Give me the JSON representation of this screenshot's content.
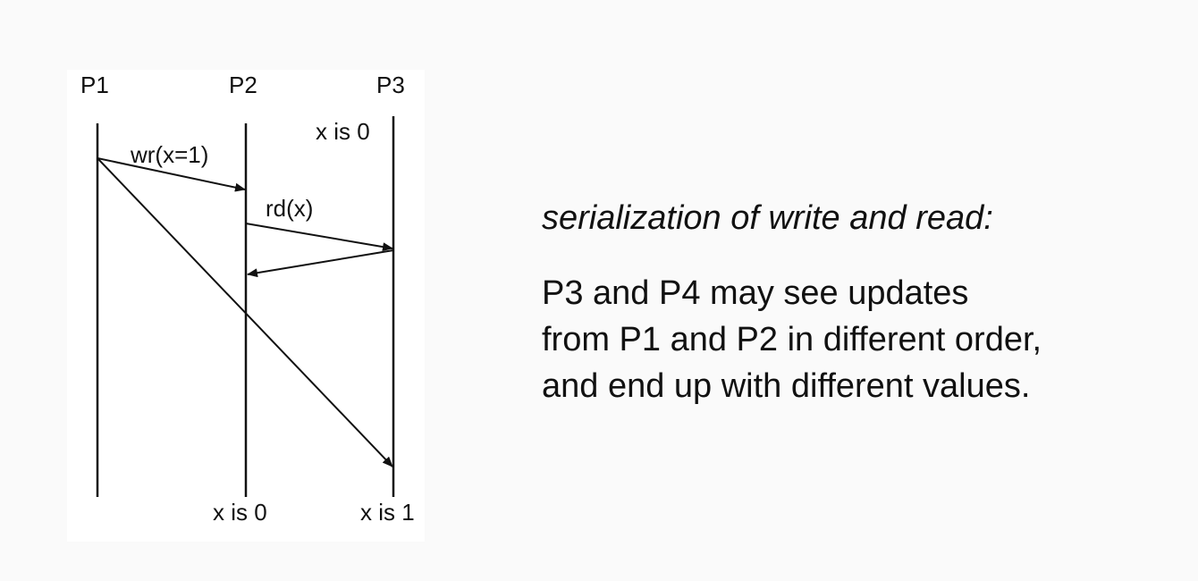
{
  "diagram": {
    "processes": [
      "P1",
      "P2",
      "P3"
    ],
    "labels": {
      "write_op": "wr(x=1)",
      "read_op": "rd(x)",
      "p3_initial": "x is 0",
      "p2_final": "x is 0",
      "p3_final": "x is 1"
    }
  },
  "explanation": {
    "heading": "serialization of write and read:",
    "lines": [
      "P3 and P4 may see updates",
      "from P1 and P2 in different order,",
      "and end up with different values."
    ]
  }
}
